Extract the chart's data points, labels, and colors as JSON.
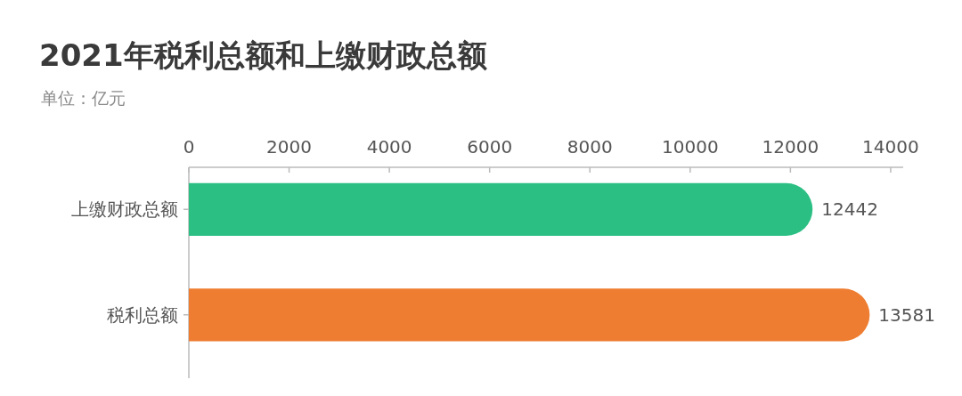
{
  "chart_data": {
    "type": "bar",
    "orientation": "horizontal",
    "title": "2021年税利总额和上缴财政总额",
    "subtitle": "单位：亿元",
    "categories": [
      "上缴财政总额",
      "税利总额"
    ],
    "values": [
      12442,
      13581
    ],
    "colors": [
      "#2bbf84",
      "#ee7d31"
    ],
    "xlim": [
      0,
      14250
    ],
    "xticks": [
      0,
      2000,
      4000,
      6000,
      8000,
      10000,
      12000,
      14000
    ],
    "data_labels": true
  }
}
